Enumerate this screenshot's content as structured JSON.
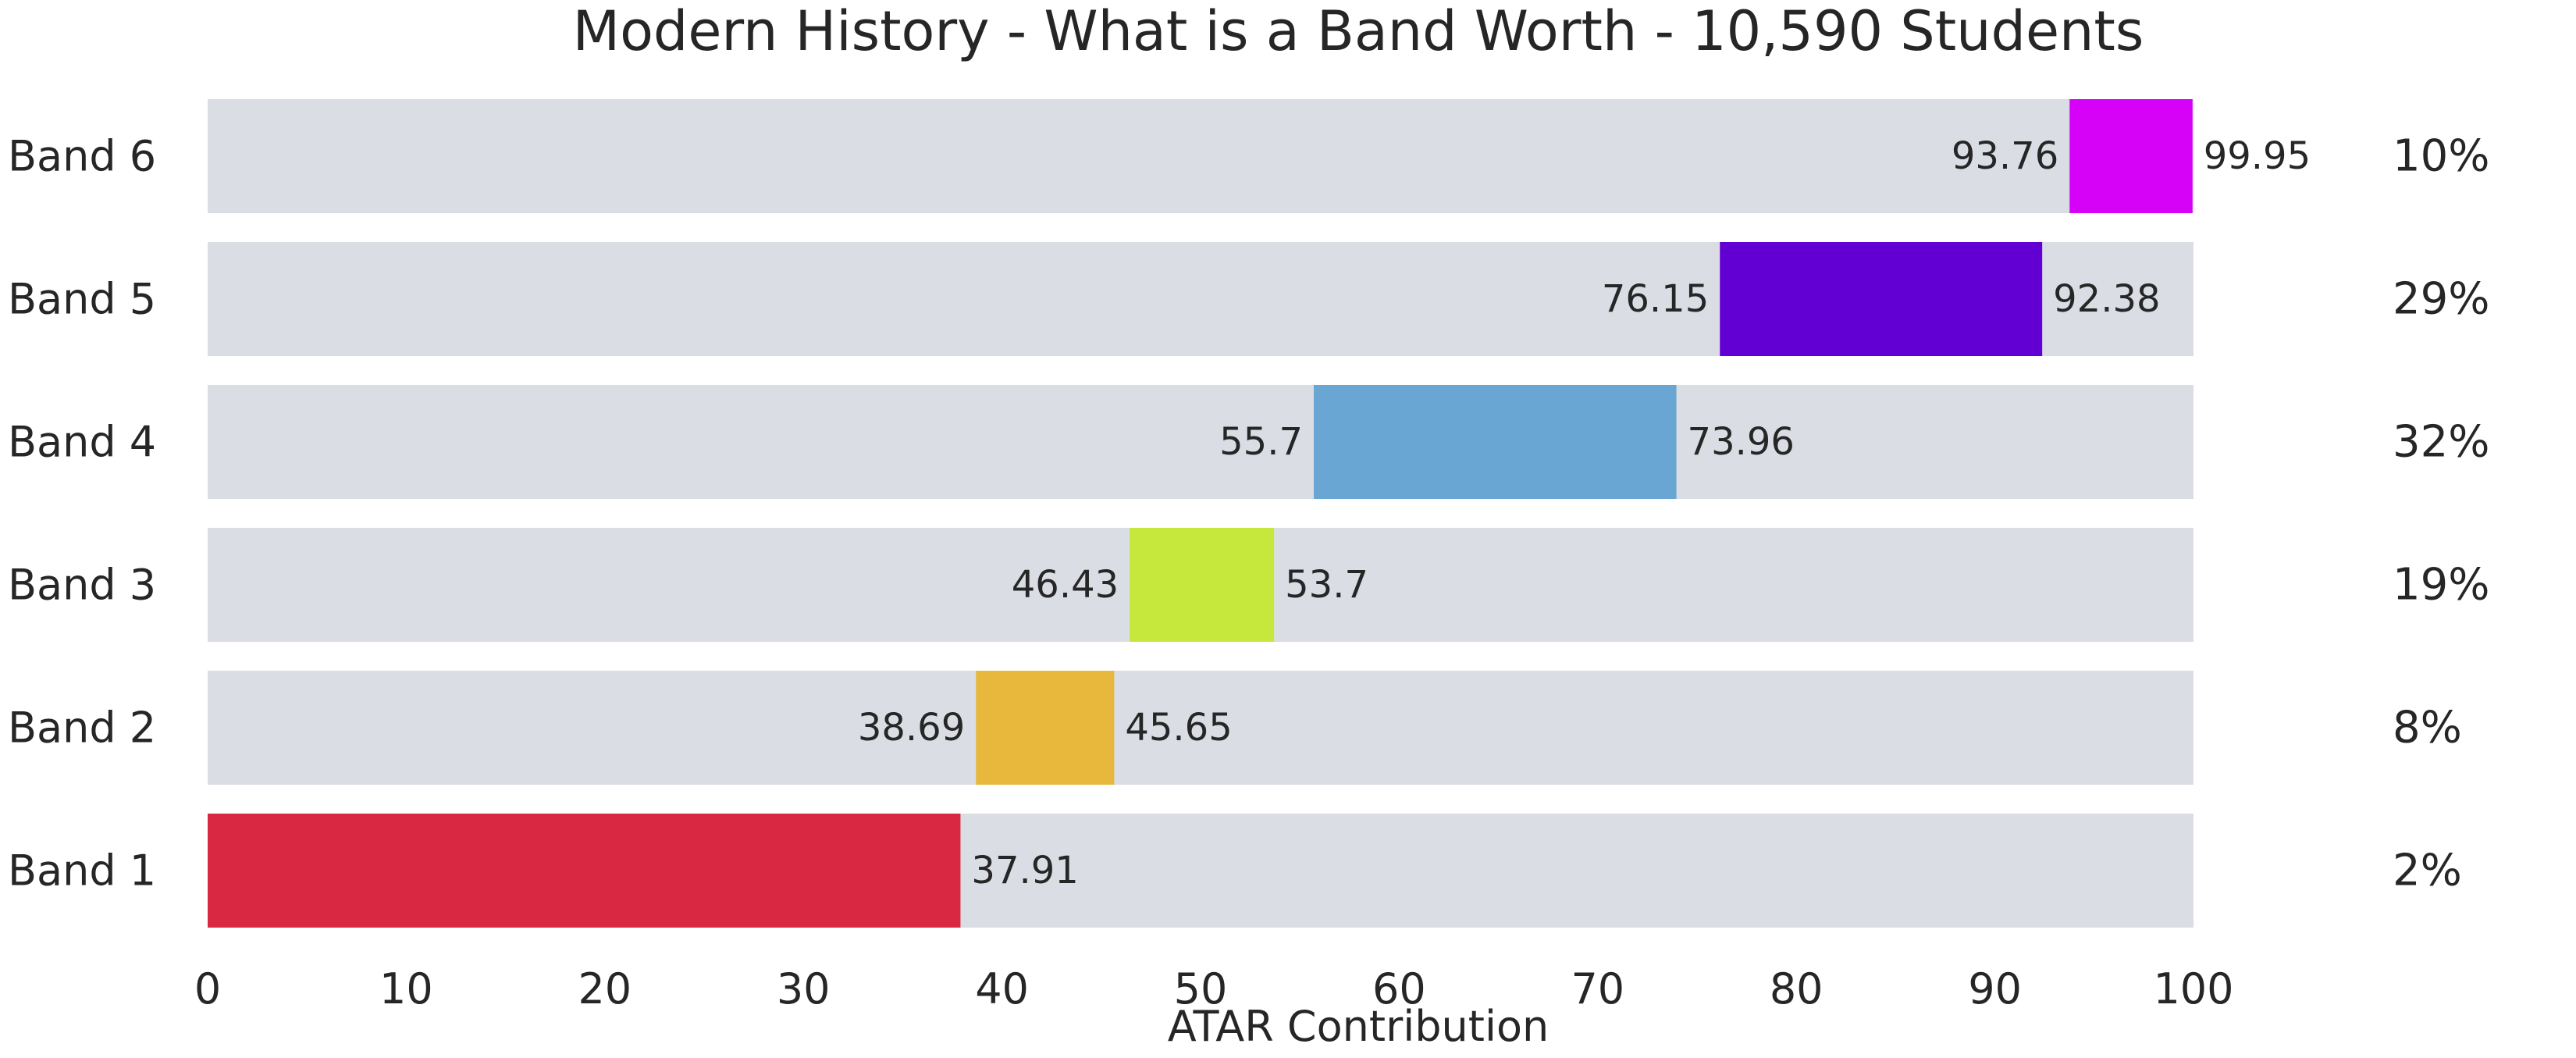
{
  "chart_data": {
    "type": "bar",
    "orientation": "horizontal-range",
    "title": "Modern History - What is a Band Worth - 10,590 Students",
    "xlabel": "ATAR Contribution",
    "ylabel": "",
    "xlim": [
      0,
      100
    ],
    "xticks": [
      "0",
      "10",
      "20",
      "30",
      "40",
      "50",
      "60",
      "70",
      "80",
      "90",
      "100"
    ],
    "grid": false,
    "background_bar_color": "#dadde4",
    "bands": [
      {
        "label": "Band 6",
        "start": 93.76,
        "end": 99.95,
        "start_label": "93.76",
        "end_label": "99.95",
        "percent": "10%",
        "color": "#d602f7"
      },
      {
        "label": "Band 5",
        "start": 76.15,
        "end": 92.38,
        "start_label": "76.15",
        "end_label": "92.38",
        "percent": "29%",
        "color": "#6200d3"
      },
      {
        "label": "Band 4",
        "start": 55.7,
        "end": 73.96,
        "start_label": "55.7",
        "end_label": "73.96",
        "percent": "32%",
        "color": "#69a6d3"
      },
      {
        "label": "Band 3",
        "start": 46.43,
        "end": 53.7,
        "start_label": "46.43",
        "end_label": "53.7",
        "percent": "19%",
        "color": "#c6e83c"
      },
      {
        "label": "Band 2",
        "start": 38.69,
        "end": 45.65,
        "start_label": "38.69",
        "end_label": "45.65",
        "percent": "8%",
        "color": "#e8b83c"
      },
      {
        "label": "Band 1",
        "start": 0,
        "end": 37.91,
        "start_label": "",
        "end_label": "37.91",
        "percent": "2%",
        "color": "#d92942"
      }
    ]
  }
}
